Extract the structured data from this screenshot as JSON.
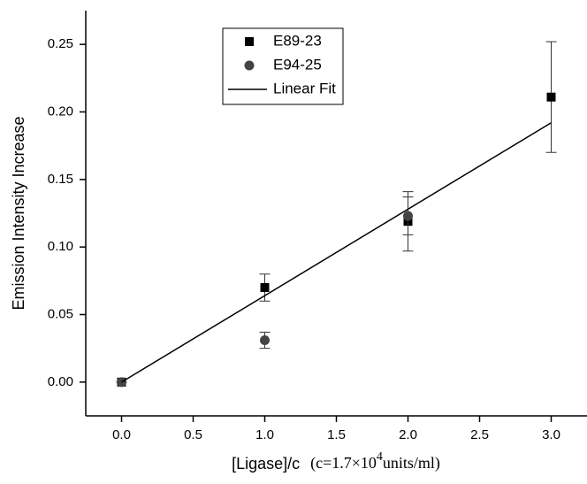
{
  "chart_data": {
    "type": "scatter",
    "y_label": "Emission Intensity Increase",
    "x_label": [
      "[Ligase]/c",
      "(c=1.7×10",
      "4",
      "units/ml)"
    ],
    "xlim": [
      -0.25,
      3.25
    ],
    "xticks": [
      {
        "value": 0,
        "label": "0.0"
      },
      0.5,
      {
        "value": 1,
        "label": "1.0"
      },
      1.5,
      {
        "value": 2,
        "label": "2.0"
      },
      2.5,
      {
        "value": 3,
        "label": "3.0"
      }
    ],
    "ylim": [
      -0.025,
      0.275
    ],
    "yticks": [
      {
        "value": 0,
        "label": "0.00"
      },
      0.05,
      {
        "value": 0.1,
        "label": "0.10"
      },
      0.15,
      {
        "value": 0.2,
        "label": "0.20"
      },
      0.25
    ],
    "legend": "top-left",
    "series": [
      {
        "name": "E89-23",
        "type": "scatter",
        "marker": "square",
        "color": "#000000",
        "x": [
          0,
          1,
          2,
          3
        ],
        "values": [
          0,
          0.07,
          0.119,
          0.211
        ],
        "errors": [
          0,
          0.01,
          0.022,
          0.041
        ]
      },
      {
        "name": "E94-25",
        "type": "scatter",
        "marker": "circle",
        "color": "#444444",
        "x": [
          0,
          1,
          2
        ],
        "values": [
          0,
          0.031,
          0.123
        ],
        "errors": [
          0,
          0.006,
          0.014
        ]
      },
      {
        "name": "Linear Fit",
        "type": "line",
        "color": "#000000",
        "x": [
          0,
          3
        ],
        "values": [
          0,
          0.192
        ]
      }
    ]
  }
}
